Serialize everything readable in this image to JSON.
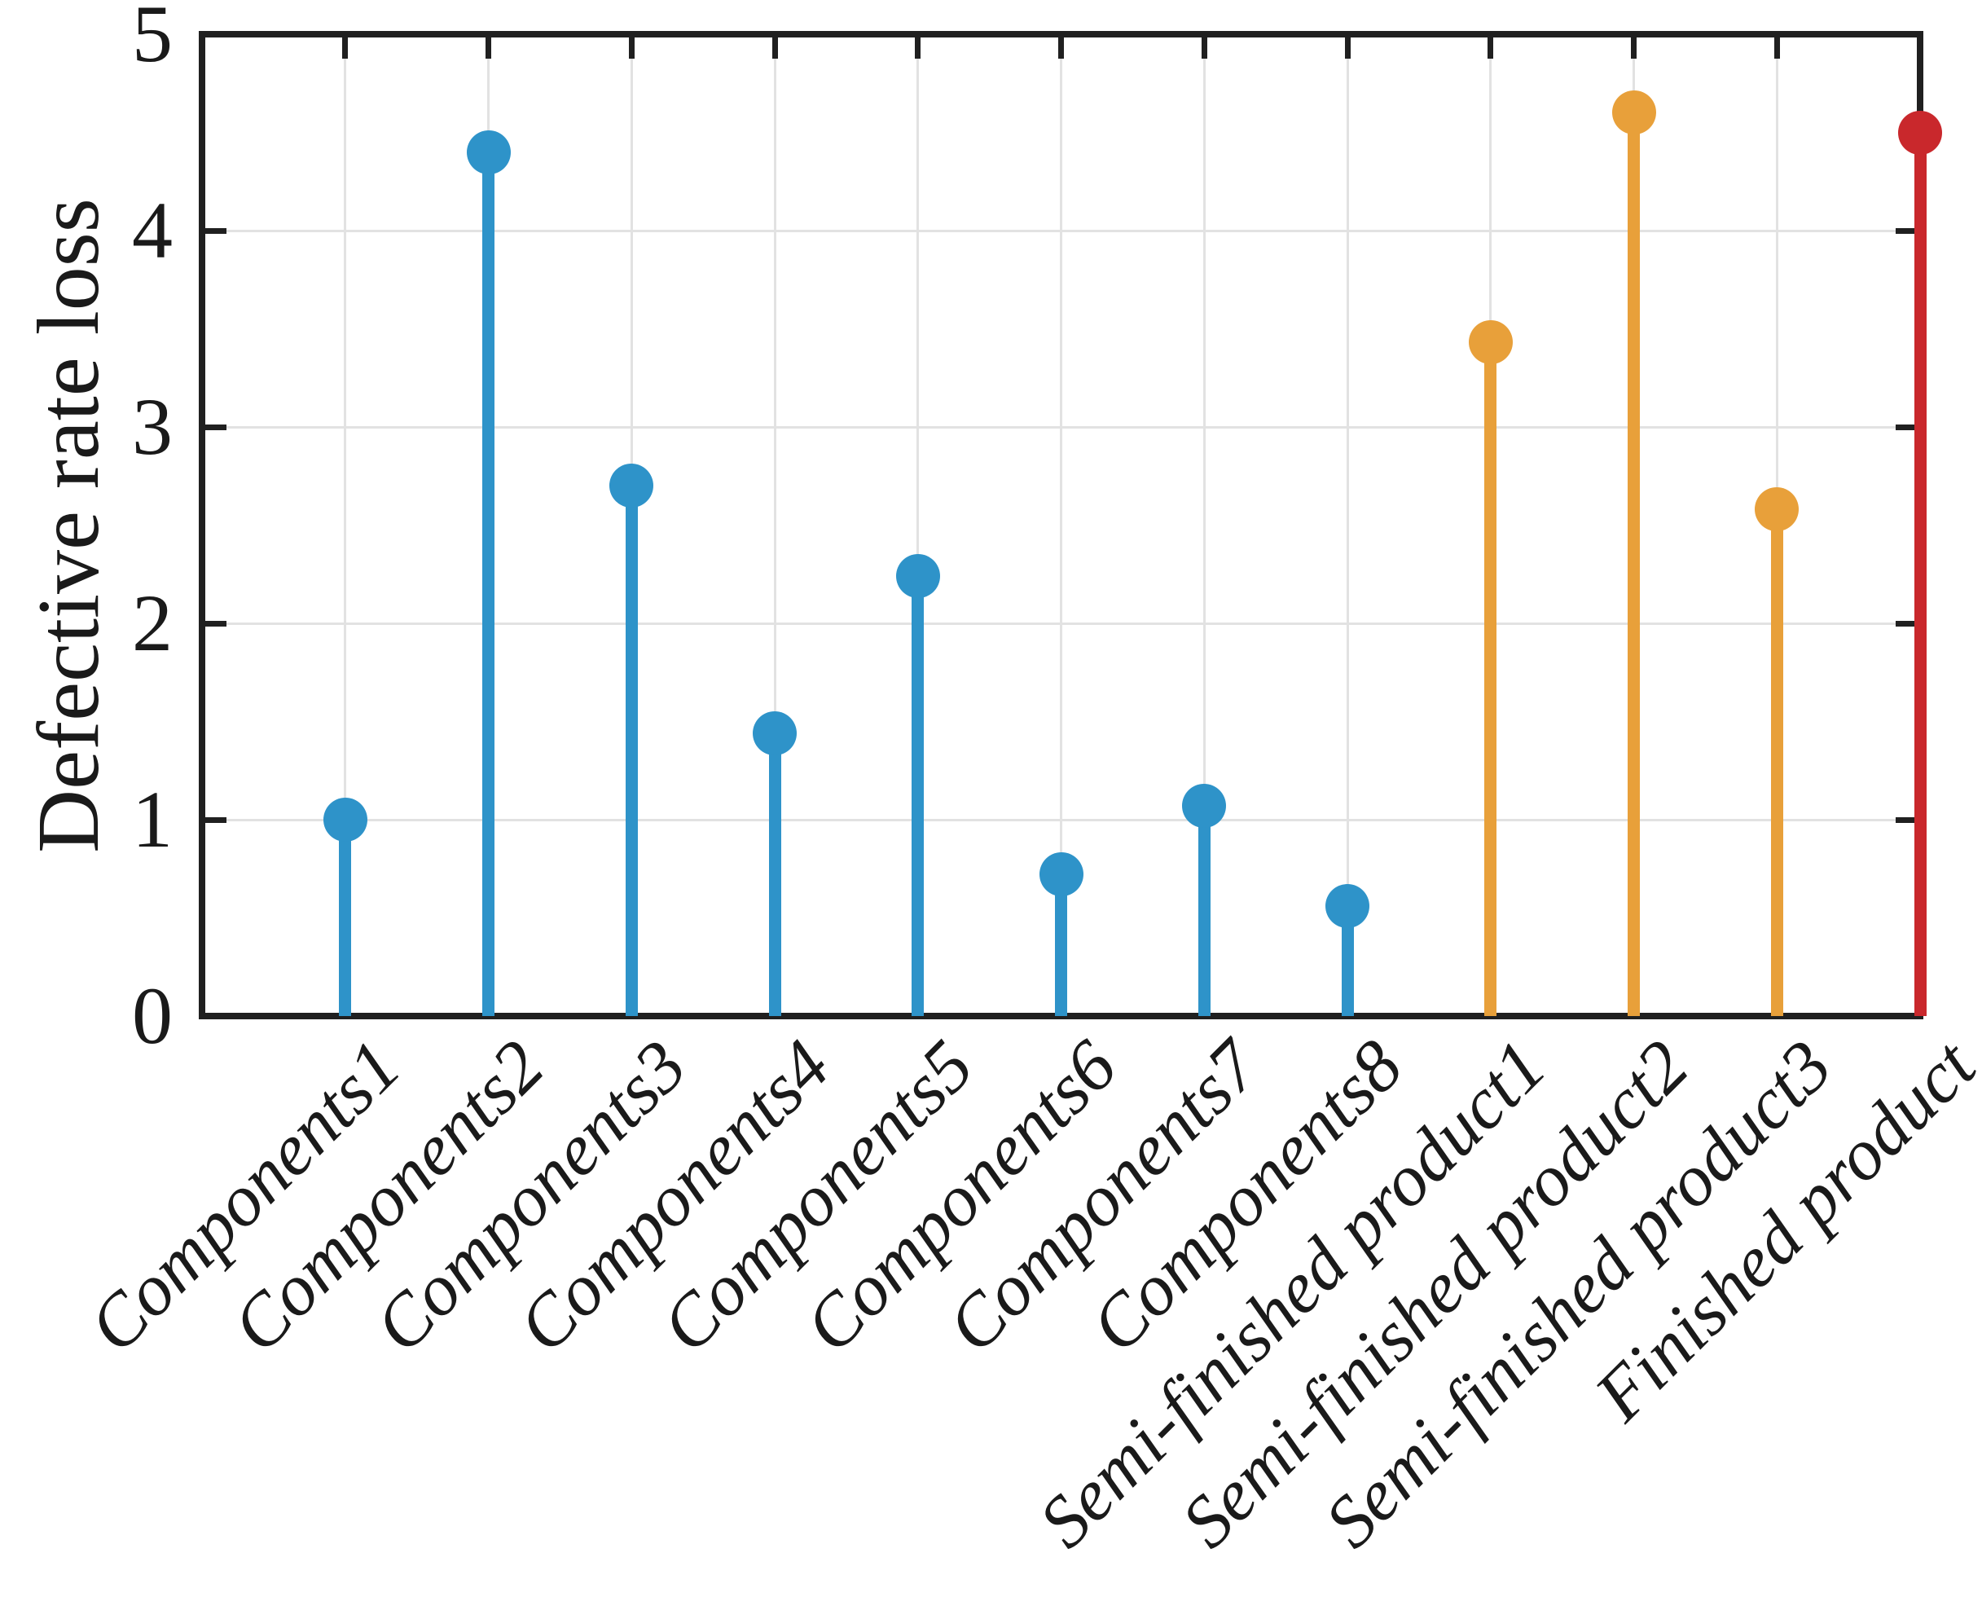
{
  "chart_data": {
    "type": "stem",
    "title": "",
    "xlabel": "",
    "ylabel": "Defective rate loss",
    "ylim": [
      0,
      5
    ],
    "yticks": [
      0,
      1,
      2,
      3,
      4,
      5
    ],
    "grid": true,
    "legend": "none",
    "marker": "filled-circle",
    "categories": [
      "Components1",
      "Components2",
      "Components3",
      "Components4",
      "Components5",
      "Components6",
      "Components7",
      "Components8",
      "Semi-finished product1",
      "Semi-finished product2",
      "Semi-finished product3",
      "Finished product"
    ],
    "values": [
      1.0,
      4.4,
      2.7,
      1.44,
      2.24,
      0.72,
      1.07,
      0.56,
      3.43,
      4.6,
      2.58,
      4.5
    ],
    "groups": [
      {
        "name": "Components",
        "color": "#2e93c9",
        "category_indices": [
          0,
          1,
          2,
          3,
          4,
          5,
          6,
          7
        ]
      },
      {
        "name": "Semi-finished products",
        "color": "#e8a03a",
        "category_indices": [
          8,
          9,
          10
        ]
      },
      {
        "name": "Finished product",
        "color": "#c9282c",
        "category_indices": [
          11
        ]
      }
    ]
  },
  "style": {
    "axis_color": "#202020",
    "grid_color": "#e2e2e2",
    "text_color": "#1a1a1a",
    "background": "#ffffff"
  }
}
